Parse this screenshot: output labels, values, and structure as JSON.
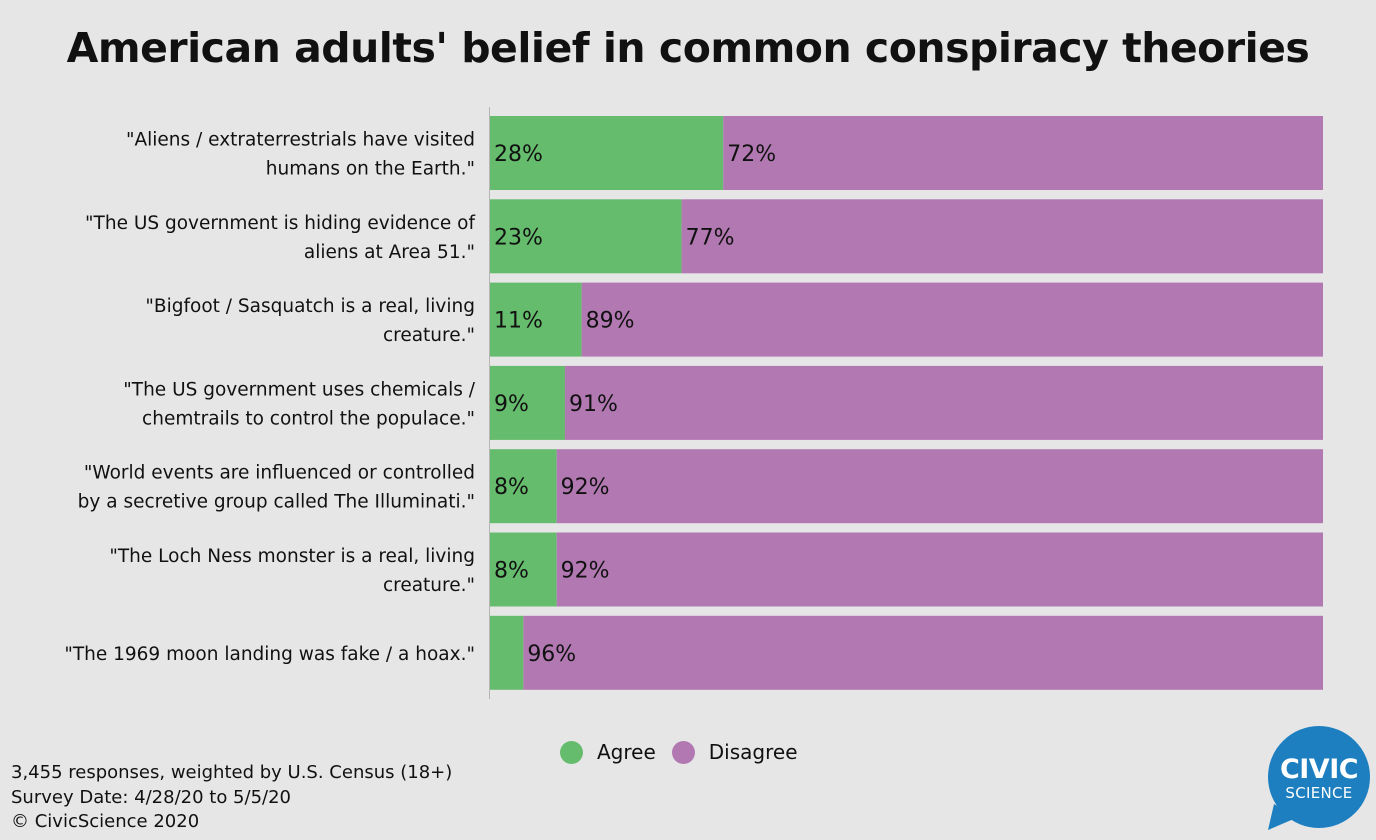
{
  "title": "American adults' belief in common conspiracy theories",
  "colors": {
    "agree": "#66bc6d",
    "disagree": "#b278b2",
    "background": "#e6e6e6",
    "logo": "#1e7fc0"
  },
  "legend": {
    "agree": "Agree",
    "disagree": "Disagree"
  },
  "footer": {
    "line1": "3,455 responses, weighted by U.S. Census (18+)",
    "line2": "Survey Date: 4/28/20 to 5/5/20",
    "line3": "© CivicScience 2020"
  },
  "logo": {
    "line1": "CIVIC",
    "line2": "SCIENCE"
  },
  "chart_data": {
    "type": "bar",
    "orientation": "horizontal",
    "stacked": true,
    "normalized_percent": true,
    "title": "American adults' belief in common conspiracy theories",
    "categories": [
      [
        "\"Aliens / extraterrestrials have visited",
        "humans on the Earth.\""
      ],
      [
        "\"The US government is hiding evidence of",
        "aliens at Area 51.\""
      ],
      [
        "\"Bigfoot / Sasquatch is a real, living",
        "creature.\""
      ],
      [
        "\"The US government uses chemicals /",
        "chemtrails to control the populace.\""
      ],
      [
        "\"World events are influenced or controlled",
        "by a secretive group called The Illuminati.\""
      ],
      [
        "\"The Loch Ness monster is a real, living",
        "creature.\""
      ],
      [
        "\"The 1969 moon landing was fake / a hoax.\""
      ]
    ],
    "series": [
      {
        "name": "Agree",
        "values": [
          28,
          23,
          11,
          9,
          8,
          8,
          4
        ],
        "labels": [
          "28%",
          "23%",
          "11%",
          "9%",
          "8%",
          "8%",
          ""
        ]
      },
      {
        "name": "Disagree",
        "values": [
          72,
          77,
          89,
          91,
          92,
          92,
          96
        ],
        "labels": [
          "72%",
          "77%",
          "89%",
          "91%",
          "92%",
          "92%",
          "96%"
        ]
      }
    ],
    "xlim": [
      0,
      100
    ],
    "grid": false,
    "legend_position": "bottom"
  }
}
